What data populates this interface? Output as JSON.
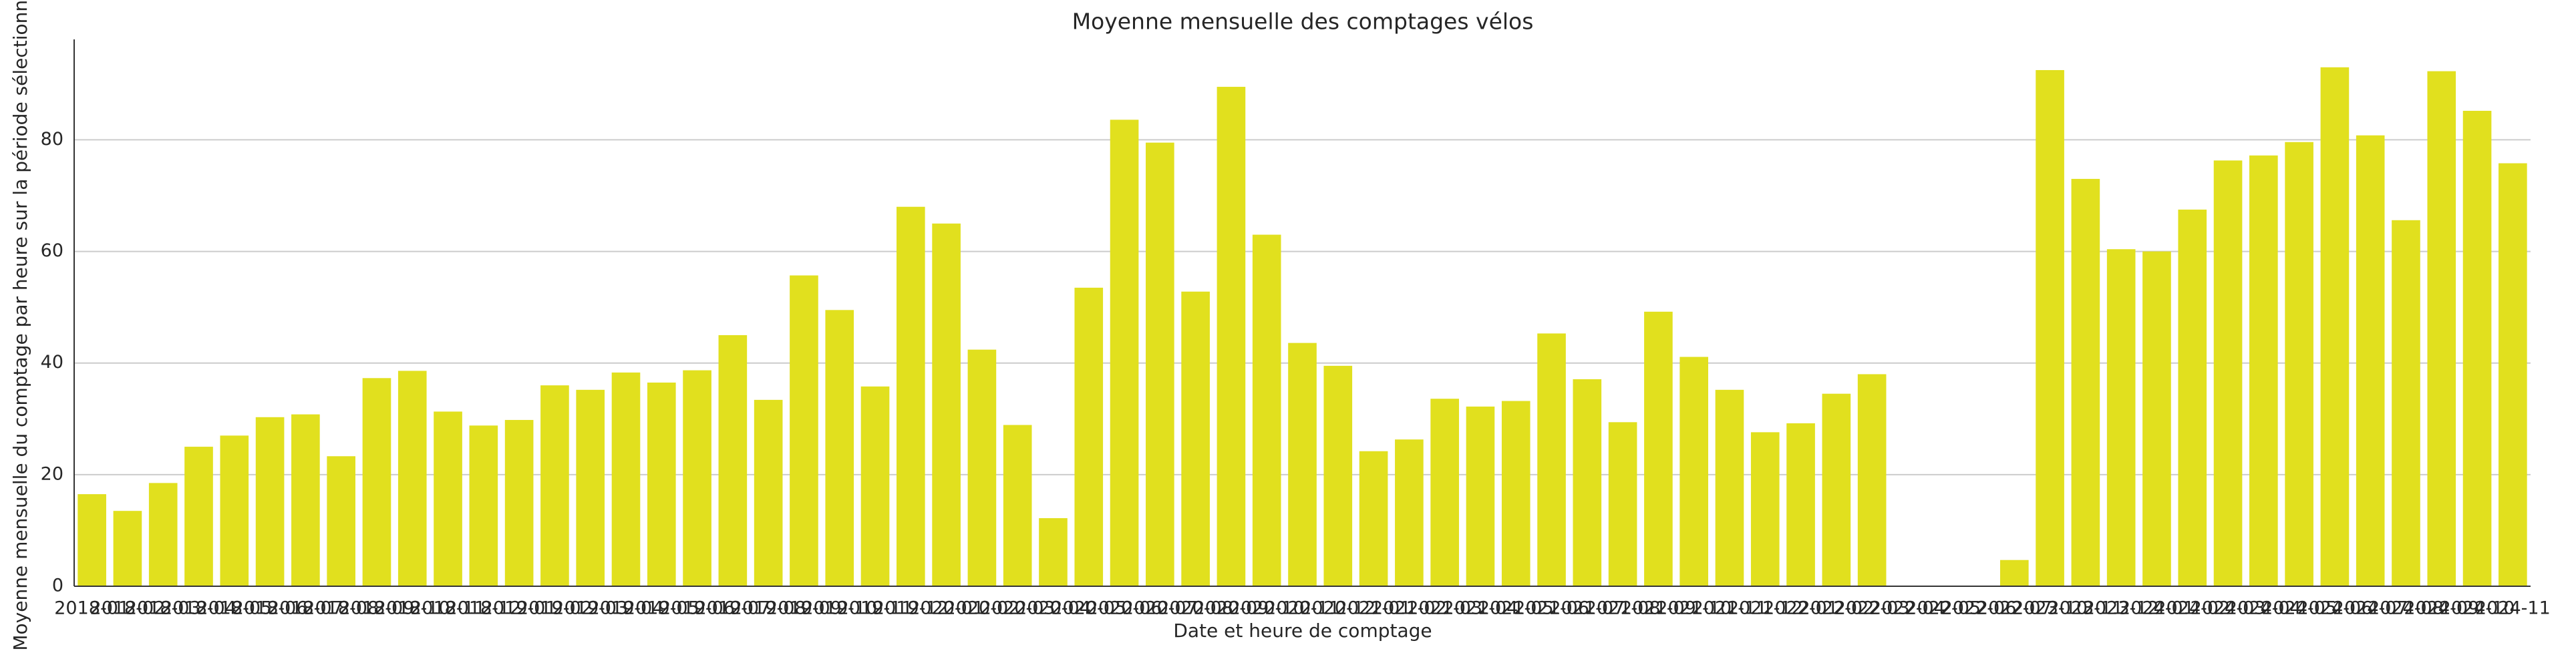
{
  "chart_data": {
    "type": "bar",
    "title": "Moyenne mensuelle des comptages vélos",
    "xlabel": "Date et heure de comptage",
    "ylabel": "Moyenne mensuelle du comptage par heure sur la période sélectionnée",
    "categories": [
      "2018-01",
      "2018-02",
      "2018-03",
      "2018-04",
      "2018-05",
      "2018-06",
      "2018-07",
      "2018-08",
      "2018-09",
      "2018-10",
      "2018-11",
      "2018-12",
      "2019-01",
      "2019-02",
      "2019-03",
      "2019-04",
      "2019-05",
      "2019-06",
      "2019-07",
      "2019-08",
      "2019-09",
      "2019-10",
      "2019-11",
      "2019-12",
      "2020-01",
      "2020-02",
      "2020-03",
      "2020-04",
      "2020-05",
      "2020-06",
      "2020-07",
      "2020-08",
      "2020-09",
      "2020-10",
      "2020-11",
      "2020-12",
      "2021-01",
      "2021-02",
      "2021-03",
      "2021-04",
      "2021-05",
      "2021-06",
      "2021-07",
      "2021-08",
      "2021-09",
      "2021-10",
      "2021-11",
      "2021-12",
      "2022-01",
      "2022-02",
      "2022-03",
      "2022-04",
      "2022-05",
      "2022-06",
      "2022-07",
      "2023-10",
      "2023-11",
      "2023-12",
      "2024-01",
      "2024-02",
      "2024-03",
      "2024-04",
      "2024-05",
      "2024-06",
      "2024-07",
      "2024-08",
      "2024-09",
      "2024-10",
      "2024-11"
    ],
    "values": [
      16.5,
      13.5,
      18.5,
      25,
      27,
      30.3,
      30.8,
      23.3,
      37.3,
      38.6,
      31.3,
      28.8,
      29.8,
      36,
      35.2,
      38.3,
      36.5,
      38.7,
      45,
      33.4,
      55.7,
      49.5,
      35.8,
      68,
      65,
      42.4,
      28.9,
      12.2,
      53.5,
      83.6,
      79.5,
      52.8,
      89.5,
      63,
      43.6,
      39.5,
      24.2,
      26.3,
      33.6,
      32.2,
      33.2,
      45.3,
      37.1,
      29.4,
      49.2,
      41.1,
      35.2,
      27.6,
      29.2,
      34.5,
      38,
      null,
      null,
      null,
      4.7,
      92.5,
      73,
      60.4,
      60,
      67.5,
      76.3,
      77.2,
      79.6,
      93,
      80.8,
      65.6,
      92.3,
      85.2,
      75.8
    ],
    "color": "#e1e01e",
    "ylim": [
      0,
      98
    ],
    "yticks": [
      0,
      20,
      40,
      60,
      80
    ],
    "grid": true
  }
}
